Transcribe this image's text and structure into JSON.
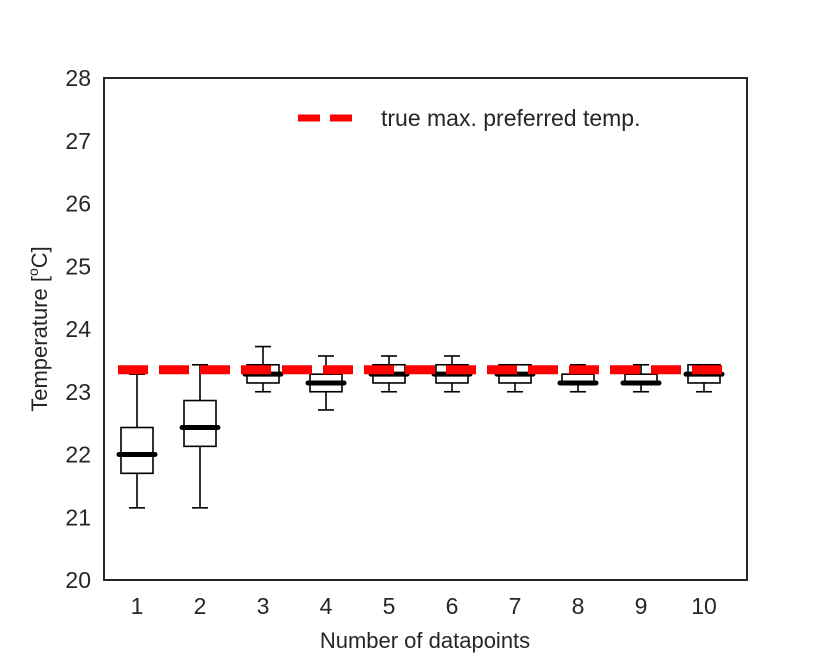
{
  "chart_data": {
    "type": "box",
    "xlabel": "Number of datapoints",
    "ylabel_main": "Temperature [",
    "ylabel_sup": "o",
    "ylabel_tail": "C]",
    "ylim": [
      20,
      28
    ],
    "yticks": [
      20,
      21,
      22,
      23,
      24,
      25,
      26,
      27,
      28
    ],
    "categories": [
      "1",
      "2",
      "3",
      "4",
      "5",
      "6",
      "7",
      "8",
      "9",
      "10"
    ],
    "boxes": [
      {
        "whislo": 21.15,
        "q1": 21.7,
        "med": 22.0,
        "q3": 22.43,
        "whishi": 23.28
      },
      {
        "whislo": 21.15,
        "q1": 22.13,
        "med": 22.43,
        "q3": 22.86,
        "whishi": 23.43
      },
      {
        "whislo": 23.0,
        "q1": 23.14,
        "med": 23.28,
        "q3": 23.43,
        "whishi": 23.72
      },
      {
        "whislo": 22.71,
        "q1": 23.0,
        "med": 23.14,
        "q3": 23.28,
        "whishi": 23.57
      },
      {
        "whislo": 23.0,
        "q1": 23.14,
        "med": 23.28,
        "q3": 23.43,
        "whishi": 23.57
      },
      {
        "whislo": 23.0,
        "q1": 23.14,
        "med": 23.28,
        "q3": 23.43,
        "whishi": 23.57
      },
      {
        "whislo": 23.0,
        "q1": 23.14,
        "med": 23.28,
        "q3": 23.43,
        "whishi": 23.43
      },
      {
        "whislo": 23.0,
        "q1": 23.14,
        "med": 23.14,
        "q3": 23.28,
        "whishi": 23.43
      },
      {
        "whislo": 23.0,
        "q1": 23.14,
        "med": 23.14,
        "q3": 23.28,
        "whishi": 23.43
      },
      {
        "whislo": 23.0,
        "q1": 23.14,
        "med": 23.28,
        "q3": 23.43,
        "whishi": 23.43
      }
    ],
    "reference_line": {
      "y": 23.35,
      "label": "true max. preferred temp.",
      "color": "#ff0000",
      "style": "dashed"
    },
    "legend_position": "top-right",
    "grid": false,
    "colors": {
      "box": "#000000",
      "median": "#000000",
      "axes": "#262626",
      "reference": "#ff0000"
    }
  }
}
